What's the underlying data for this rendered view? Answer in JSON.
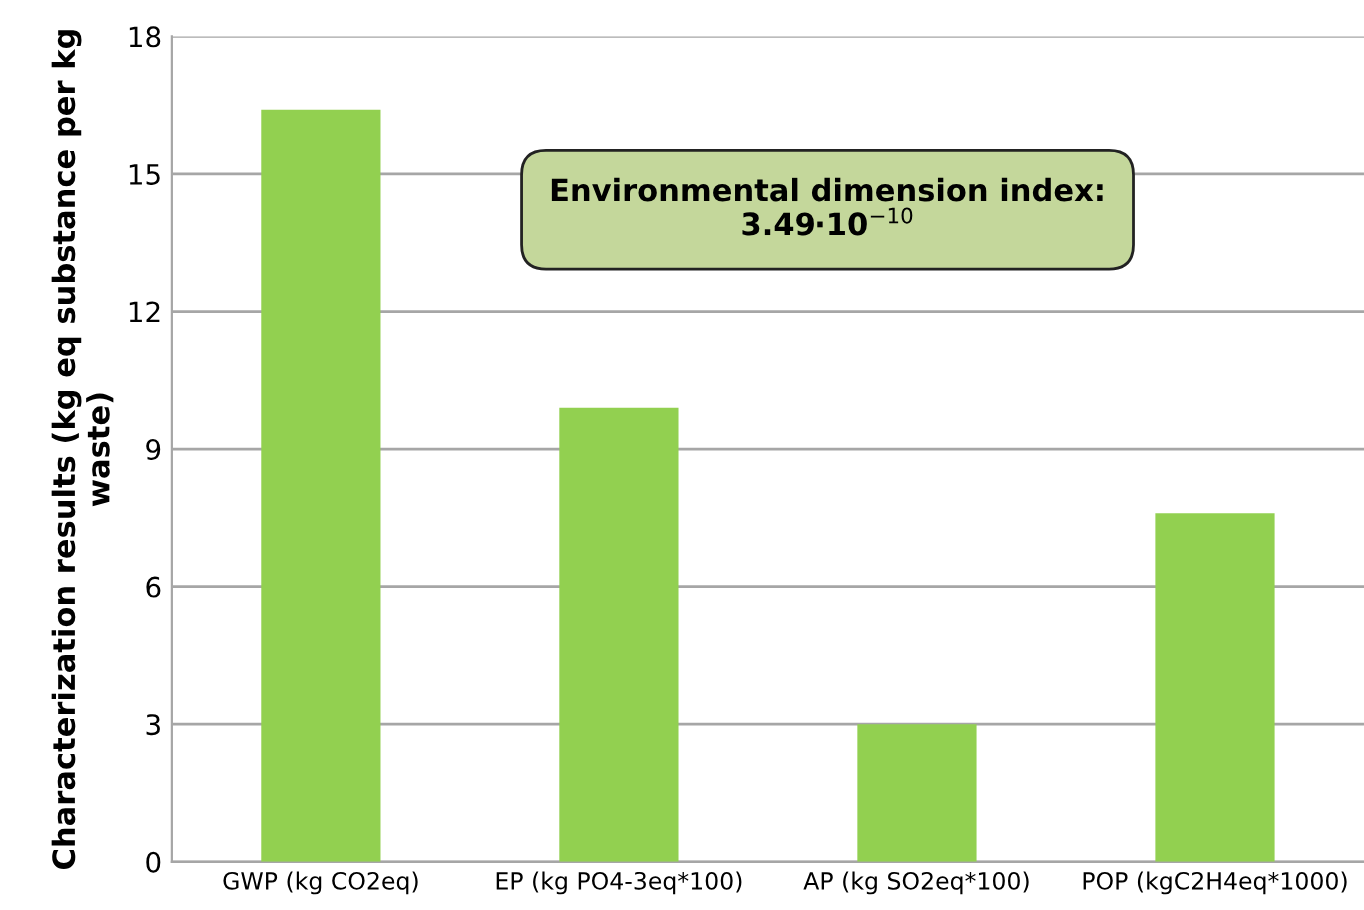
{
  "chart_data": {
    "type": "bar",
    "ylabel": "Characterization results (kg eq substance per kg waste)",
    "categories": [
      "GWP (kg CO2eq)",
      "EP (kg PO4-3eq*100)",
      "AP (kg SO2eq*100)",
      "POP (kgC2H4eq*1000)"
    ],
    "values": [
      16.4,
      9.9,
      3.0,
      7.6
    ],
    "color": "#92d050",
    "ylim": [
      0,
      18
    ],
    "yticks": [
      0,
      3,
      6,
      9,
      12,
      15,
      18
    ],
    "grid": "y",
    "legend": false,
    "annotations": [
      "Environmental dimension index:\n3.49·10$^{−10}$"
    ]
  }
}
